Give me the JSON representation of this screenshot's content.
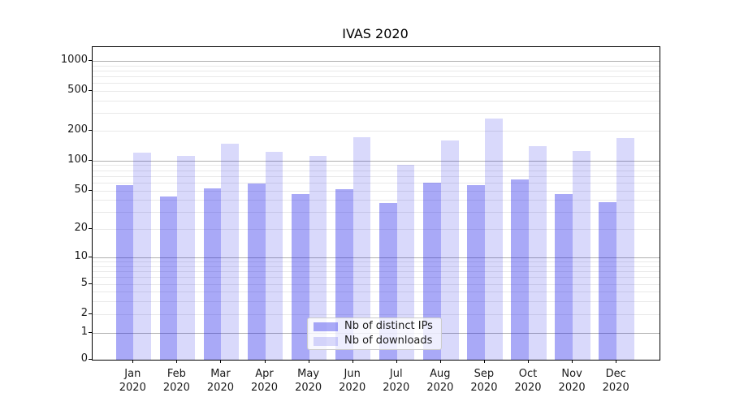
{
  "title": "IVAS 2020",
  "colors": {
    "bar_distinct_ips": "#1616E85E",
    "bar_downloads": "#1616E82A",
    "grid_major": "#b0b0b0",
    "grid_minor": "#e9e9e9",
    "spine": "#000000",
    "legend_border": "#cccccc"
  },
  "legend": {
    "items": [
      {
        "label": "Nb of distinct IPs"
      },
      {
        "label": "Nb of downloads"
      }
    ]
  },
  "chart_data": {
    "type": "bar",
    "title": "IVAS 2020",
    "xlabel": "",
    "ylabel": "",
    "yscale": "symlog",
    "grid": true,
    "legend_position": "lower center",
    "ylim": [
      0,
      1400
    ],
    "yticks": [
      0,
      1,
      2,
      5,
      10,
      20,
      50,
      100,
      200,
      500,
      1000
    ],
    "categories": [
      "Jan 2020",
      "Feb 2020",
      "Mar 2020",
      "Apr 2020",
      "May 2020",
      "Jun 2020",
      "Jul 2020",
      "Aug 2020",
      "Sep 2020",
      "Oct 2020",
      "Nov 2020",
      "Dec 2020"
    ],
    "series": [
      {
        "name": "Nb of distinct IPs",
        "color": "#1616E85E",
        "values": [
          57,
          43,
          52,
          59,
          46,
          51,
          37,
          60,
          57,
          65,
          46,
          38
        ]
      },
      {
        "name": "Nb of downloads",
        "color": "#1616E82A",
        "values": [
          121,
          112,
          149,
          123,
          111,
          172,
          91,
          159,
          266,
          140,
          125,
          168
        ]
      }
    ]
  }
}
